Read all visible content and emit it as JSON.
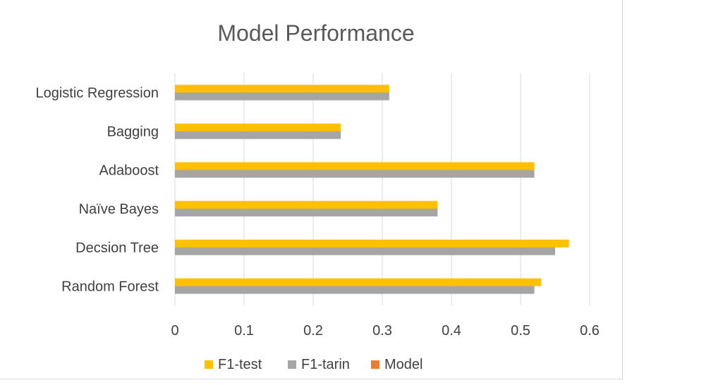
{
  "chart_data": {
    "type": "bar",
    "orientation": "horizontal",
    "title": "Model Performance",
    "categories": [
      "Random Forest",
      "Decsion Tree",
      "Naïve Bayes",
      "Adaboost",
      "Bagging",
      "Logistic Regression"
    ],
    "series": [
      {
        "name": "F1-test",
        "color": "#FFC000",
        "values": [
          0.53,
          0.57,
          0.38,
          0.52,
          0.24,
          0.31
        ]
      },
      {
        "name": "F1-tarin",
        "color": "#A5A5A5",
        "values": [
          0.52,
          0.55,
          0.38,
          0.52,
          0.24,
          0.31
        ]
      },
      {
        "name": "Model",
        "color": "#ED7D31",
        "values": [
          null,
          null,
          null,
          null,
          null,
          null
        ]
      }
    ],
    "xlim": [
      0,
      0.6
    ],
    "xticks": [
      "0",
      "0.1",
      "0.2",
      "0.3",
      "0.4",
      "0.5",
      "0.6"
    ],
    "grid": true,
    "legend_position": "bottom"
  }
}
